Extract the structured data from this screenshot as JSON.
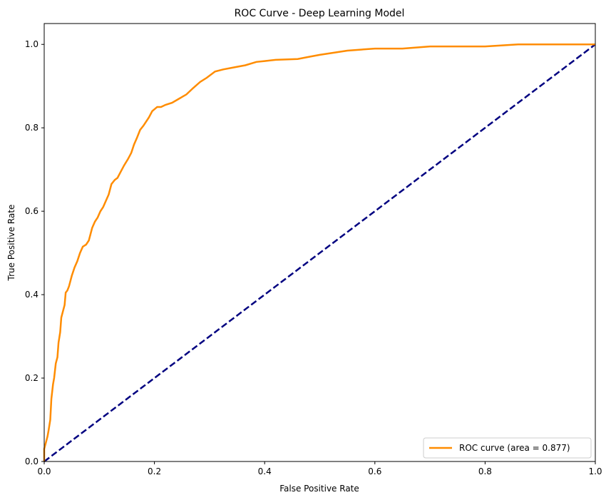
{
  "chart_data": {
    "type": "line",
    "title": "ROC Curve - Deep Learning Model",
    "xlabel": "False Positive Rate",
    "ylabel": "True Positive Rate",
    "xlim": [
      0.0,
      1.0
    ],
    "ylim": [
      0.0,
      1.05
    ],
    "xticks": [
      "0.0",
      "0.2",
      "0.4",
      "0.6",
      "0.8",
      "1.0"
    ],
    "yticks": [
      "0.0",
      "0.2",
      "0.4",
      "0.6",
      "0.8",
      "1.0"
    ],
    "xtick_values": [
      0.0,
      0.2,
      0.4,
      0.6,
      0.8,
      1.0
    ],
    "ytick_values": [
      0.0,
      0.2,
      0.4,
      0.6,
      0.8,
      1.0
    ],
    "grid": false,
    "legend_position": "lower-right",
    "series": [
      {
        "name": "ROC curve (area = 0.877)",
        "color": "#ff8c00",
        "style": "solid",
        "x": [
          0.0,
          0.0,
          0.003,
          0.006,
          0.008,
          0.011,
          0.013,
          0.016,
          0.018,
          0.021,
          0.024,
          0.026,
          0.029,
          0.031,
          0.034,
          0.037,
          0.039,
          0.042,
          0.045,
          0.047,
          0.05,
          0.055,
          0.06,
          0.065,
          0.07,
          0.076,
          0.081,
          0.087,
          0.092,
          0.097,
          0.102,
          0.107,
          0.112,
          0.117,
          0.122,
          0.128,
          0.133,
          0.139,
          0.145,
          0.152,
          0.158,
          0.163,
          0.168,
          0.174,
          0.18,
          0.185,
          0.19,
          0.196,
          0.205,
          0.212,
          0.22,
          0.232,
          0.245,
          0.258,
          0.27,
          0.283,
          0.295,
          0.31,
          0.325,
          0.345,
          0.365,
          0.385,
          0.4,
          0.42,
          0.46,
          0.48,
          0.5,
          0.55,
          0.6,
          0.65,
          0.7,
          0.8,
          0.86,
          0.9,
          1.0
        ],
        "y": [
          0.0,
          0.03,
          0.045,
          0.06,
          0.075,
          0.1,
          0.15,
          0.185,
          0.2,
          0.235,
          0.25,
          0.285,
          0.31,
          0.345,
          0.36,
          0.375,
          0.405,
          0.41,
          0.42,
          0.43,
          0.445,
          0.465,
          0.48,
          0.5,
          0.515,
          0.52,
          0.53,
          0.56,
          0.575,
          0.585,
          0.6,
          0.61,
          0.625,
          0.64,
          0.665,
          0.675,
          0.68,
          0.695,
          0.71,
          0.725,
          0.74,
          0.76,
          0.775,
          0.795,
          0.805,
          0.815,
          0.825,
          0.84,
          0.85,
          0.85,
          0.855,
          0.86,
          0.87,
          0.88,
          0.895,
          0.91,
          0.92,
          0.935,
          0.94,
          0.945,
          0.95,
          0.958,
          0.96,
          0.963,
          0.965,
          0.97,
          0.975,
          0.985,
          0.99,
          0.99,
          0.995,
          0.995,
          1.0,
          1.0,
          1.0
        ]
      },
      {
        "name": "",
        "color": "#000080",
        "style": "dashed",
        "x": [
          0.0,
          1.0
        ],
        "y": [
          0.0,
          1.0
        ]
      }
    ]
  }
}
